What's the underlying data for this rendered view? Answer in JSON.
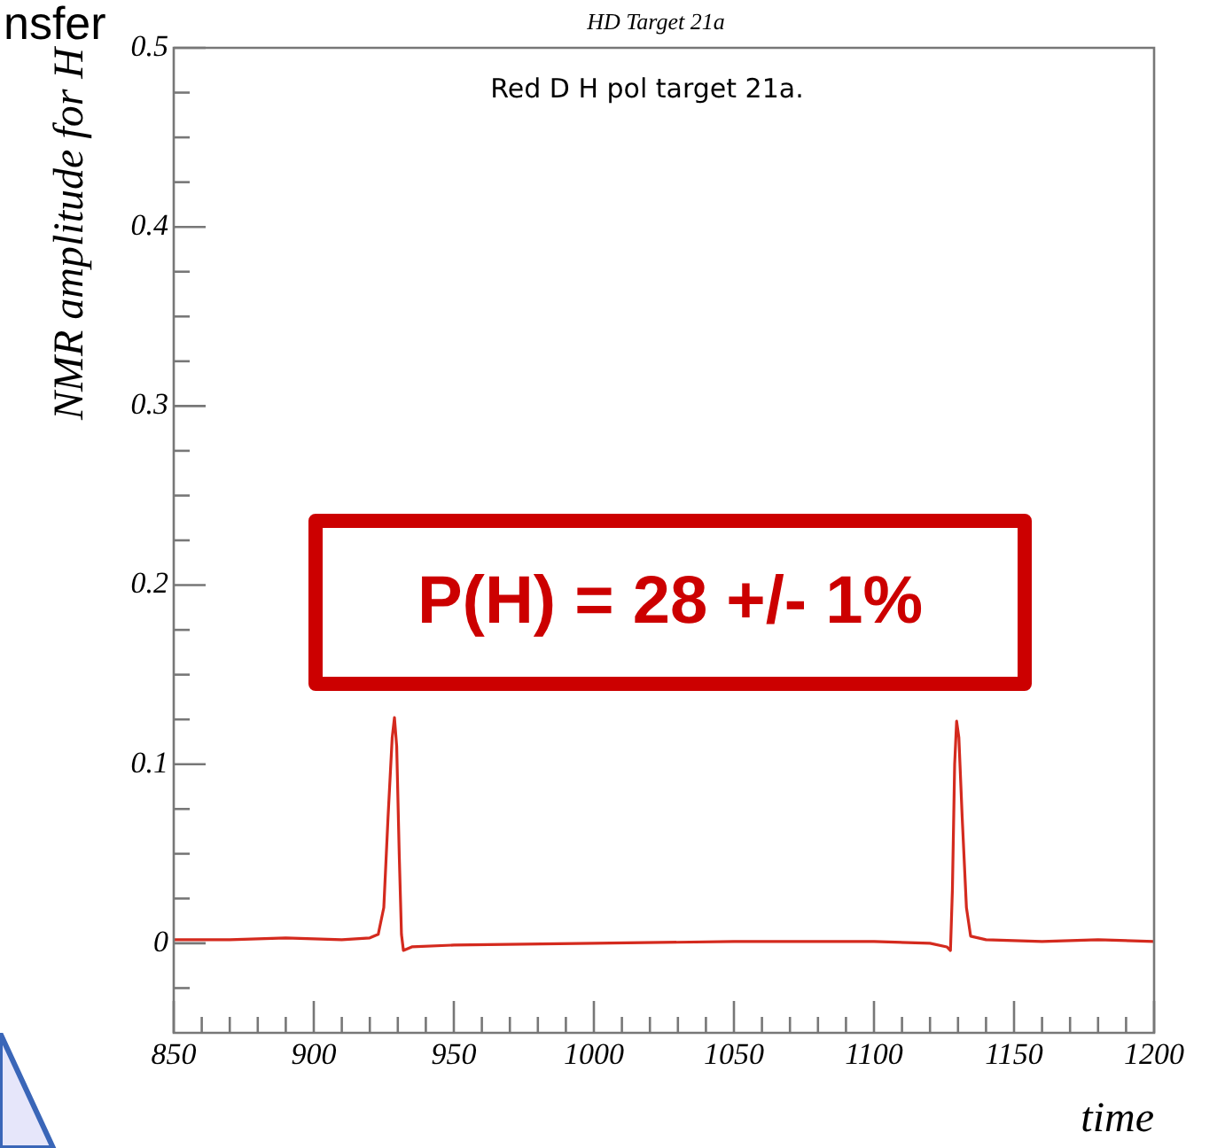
{
  "chart_data": {
    "type": "line",
    "title": "HD Target 21a",
    "xlabel": "time",
    "ylabel": "NMR amplitude for H",
    "annotations": [
      "Red D H pol target 21a.",
      "P(H) = 28 +/- 1%",
      "nsfer"
    ],
    "series": [
      {
        "color": "#d42a1e",
        "x": [
          850,
          870,
          890,
          910,
          920,
          923,
          925,
          926.5,
          928,
          928.8,
          929.6,
          930.5,
          931.3,
          932,
          935,
          950,
          1000,
          1050,
          1100,
          1120,
          1126,
          1127.3,
          1128,
          1128.8,
          1129.5,
          1130.3,
          1131.5,
          1133,
          1134.5,
          1140,
          1160,
          1180,
          1200
        ],
        "values": [
          0.002,
          0.002,
          0.003,
          0.002,
          0.003,
          0.005,
          0.02,
          0.07,
          0.115,
          0.126,
          0.11,
          0.05,
          0.005,
          -0.004,
          -0.002,
          -0.001,
          0,
          0.001,
          0.001,
          0,
          -0.002,
          -0.004,
          0.03,
          0.1,
          0.124,
          0.115,
          0.07,
          0.02,
          0.004,
          0.002,
          0.001,
          0.002,
          0.001
        ]
      }
    ],
    "xlim": [
      850,
      1200
    ],
    "xticks": [
      850,
      {
        "value": 860,
        "label": null
      },
      {
        "value": 870,
        "label": null
      },
      {
        "value": 880,
        "label": null
      },
      {
        "value": 890,
        "label": null
      },
      900,
      {
        "value": 910,
        "label": null
      },
      {
        "value": 920,
        "label": null
      },
      {
        "value": 930,
        "label": null
      },
      {
        "value": 940,
        "label": null
      },
      950,
      {
        "value": 960,
        "label": null
      },
      {
        "value": 970,
        "label": null
      },
      {
        "value": 980,
        "label": null
      },
      {
        "value": 990,
        "label": null
      },
      1000,
      {
        "value": 1010,
        "label": null
      },
      {
        "value": 1020,
        "label": null
      },
      {
        "value": 1030,
        "label": null
      },
      {
        "value": 1040,
        "label": null
      },
      1050,
      {
        "value": 1060,
        "label": null
      },
      {
        "value": 1070,
        "label": null
      },
      {
        "value": 1080,
        "label": null
      },
      {
        "value": 1090,
        "label": null
      },
      1100,
      {
        "value": 1110,
        "label": null
      },
      {
        "value": 1120,
        "label": null
      },
      {
        "value": 1130,
        "label": null
      },
      {
        "value": 1140,
        "label": null
      },
      1150,
      {
        "value": 1160,
        "label": null
      },
      {
        "value": 1170,
        "label": null
      },
      {
        "value": 1180,
        "label": null
      },
      {
        "value": 1190,
        "label": null
      },
      1200
    ],
    "ylim": [
      -0.05,
      0.5
    ],
    "yticks": [
      {
        "value": -0.025,
        "label": null
      },
      0,
      {
        "value": 0.025,
        "label": null
      },
      {
        "value": 0.05,
        "label": null
      },
      {
        "value": 0.075,
        "label": null
      },
      0.1,
      {
        "value": 0.125,
        "label": null
      },
      {
        "value": 0.15,
        "label": null
      },
      {
        "value": 0.175,
        "label": null
      },
      0.2,
      {
        "value": 0.225,
        "label": null
      },
      {
        "value": 0.25,
        "label": null
      },
      {
        "value": 0.275,
        "label": null
      },
      0.3,
      {
        "value": 0.325,
        "label": null
      },
      {
        "value": 0.35,
        "label": null
      },
      {
        "value": 0.375,
        "label": null
      },
      0.4,
      {
        "value": 0.425,
        "label": null
      },
      {
        "value": 0.45,
        "label": null
      },
      {
        "value": 0.475,
        "label": null
      },
      0.5
    ],
    "legend": false,
    "marker": "none",
    "line_style": "solid"
  }
}
